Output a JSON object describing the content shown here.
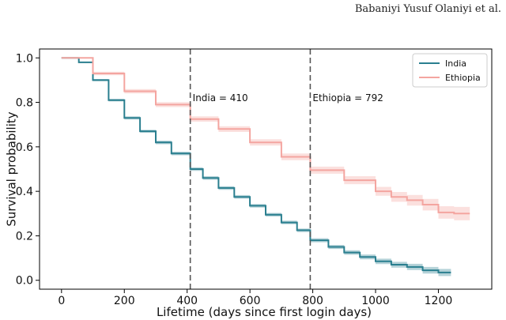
{
  "header": {
    "author": "Babaniyi Yusuf Olaniyi et al."
  },
  "chart_data": {
    "type": "line",
    "title": "",
    "xlabel": "Lifetime (days since first login days)",
    "ylabel": "Survival probability",
    "xlim": [
      -70,
      1370
    ],
    "ylim": [
      -0.04,
      1.04
    ],
    "xticks": [
      0,
      200,
      400,
      600,
      800,
      1000,
      1200
    ],
    "yticks": [
      0.0,
      0.2,
      0.4,
      0.6,
      0.8,
      1.0
    ],
    "ytick_labels": [
      "0.0",
      "0.2",
      "0.4",
      "0.6",
      "0.8",
      "1.0"
    ],
    "legend_position": "top-right",
    "colors": {
      "India": "#2a7f8f",
      "Ethiopia": "#f4a5a0"
    },
    "series": [
      {
        "name": "India",
        "x": [
          0,
          35,
          55,
          100,
          150,
          200,
          250,
          300,
          350,
          410,
          450,
          500,
          550,
          600,
          650,
          700,
          750,
          792,
          850,
          900,
          950,
          1000,
          1050,
          1100,
          1150,
          1200,
          1240
        ],
        "y": [
          1.0,
          1.0,
          0.98,
          0.9,
          0.81,
          0.73,
          0.67,
          0.62,
          0.57,
          0.5,
          0.46,
          0.415,
          0.375,
          0.335,
          0.295,
          0.26,
          0.225,
          0.18,
          0.15,
          0.125,
          0.105,
          0.085,
          0.07,
          0.06,
          0.045,
          0.035,
          0.035
        ],
        "ci_halfwidth": [
          0,
          0,
          0,
          0.005,
          0.006,
          0.007,
          0.007,
          0.008,
          0.008,
          0.008,
          0.008,
          0.008,
          0.008,
          0.008,
          0.008,
          0.008,
          0.008,
          0.009,
          0.009,
          0.01,
          0.011,
          0.012,
          0.013,
          0.014,
          0.015,
          0.016,
          0.016
        ]
      },
      {
        "name": "Ethiopia",
        "x": [
          0,
          40,
          100,
          200,
          300,
          410,
          500,
          600,
          700,
          792,
          900,
          1000,
          1050,
          1100,
          1150,
          1200,
          1250,
          1300
        ],
        "y": [
          1.0,
          1.0,
          0.93,
          0.85,
          0.79,
          0.725,
          0.68,
          0.62,
          0.555,
          0.495,
          0.45,
          0.4,
          0.375,
          0.36,
          0.34,
          0.305,
          0.3,
          0.3
        ],
        "ci_halfwidth": [
          0,
          0,
          0.008,
          0.01,
          0.011,
          0.012,
          0.013,
          0.014,
          0.015,
          0.016,
          0.018,
          0.02,
          0.022,
          0.024,
          0.026,
          0.028,
          0.03,
          0.03
        ]
      }
    ],
    "vlines": [
      {
        "x": 410,
        "label": "India = 410"
      },
      {
        "x": 792,
        "label": "Ethiopia = 792"
      }
    ]
  }
}
